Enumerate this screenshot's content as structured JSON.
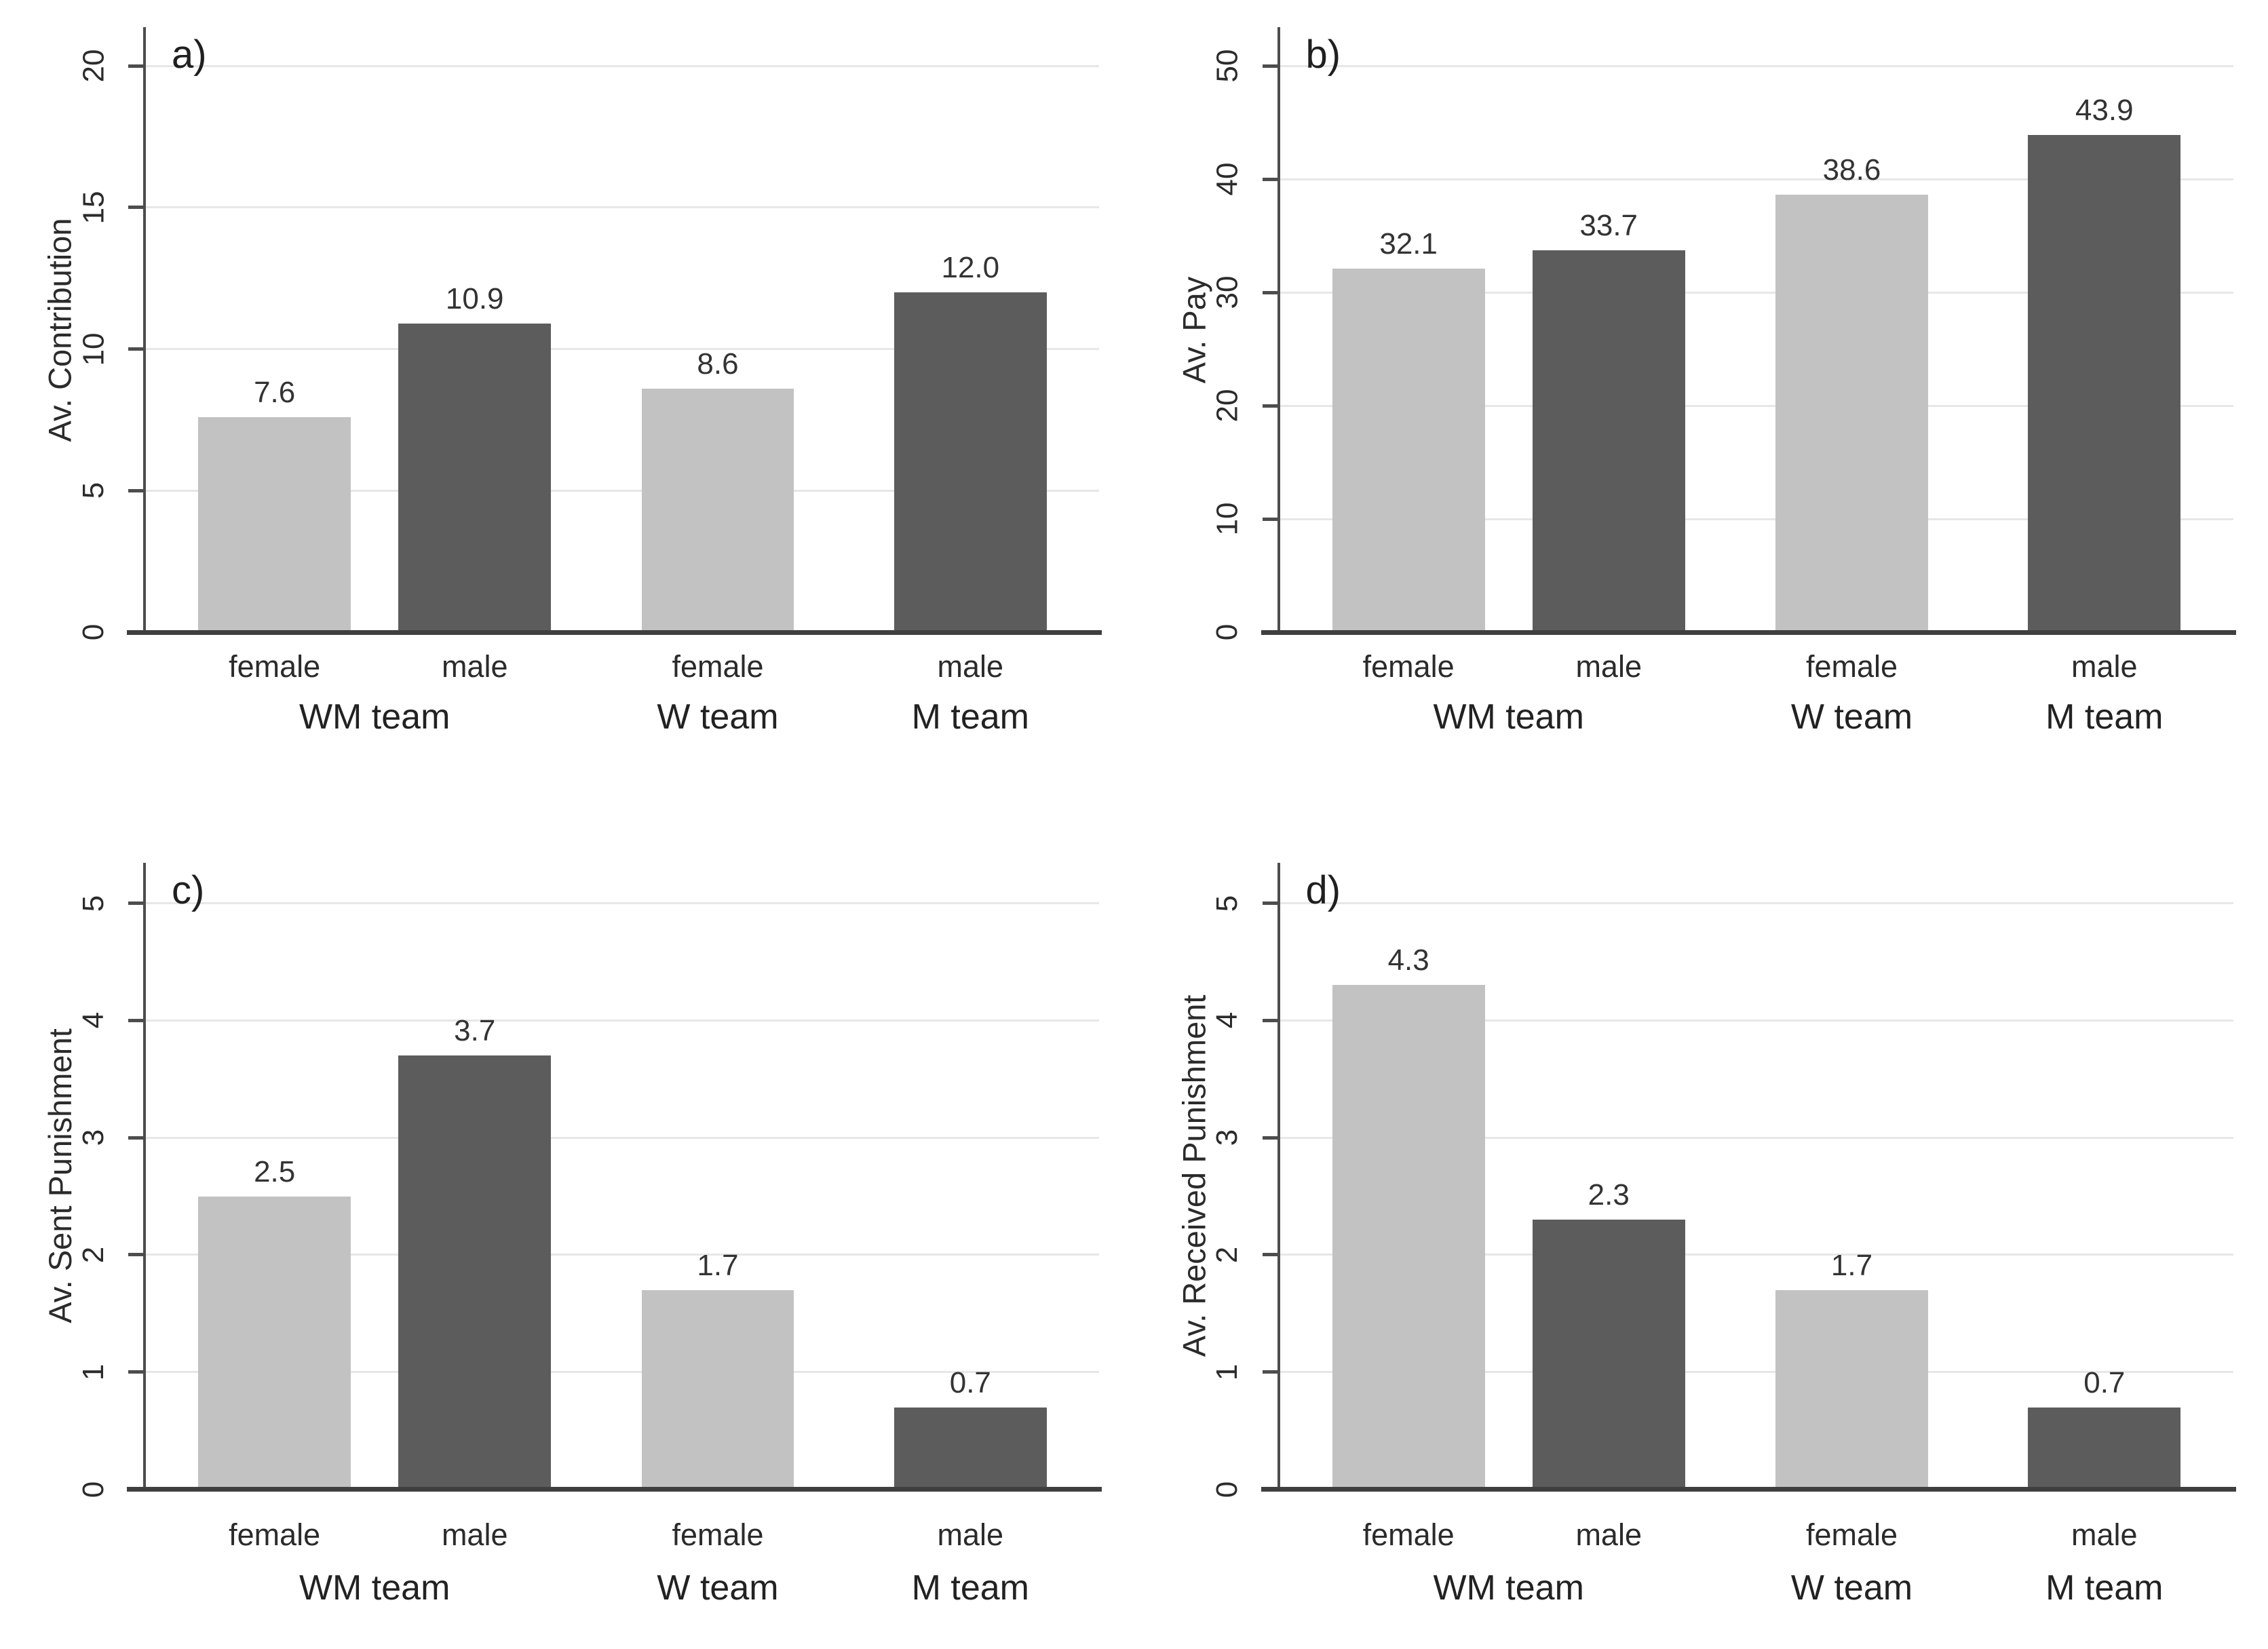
{
  "figure": {
    "background": "#ffffff",
    "description": "2x2 grid of grouped bar charts comparing female and male members of WM, W and M teams"
  },
  "style": {
    "bar_light": "#c2c2c2",
    "bar_dark": "#5c5c5c",
    "gridline": "#e7e7e7",
    "y_axis": "#4d4d4d",
    "x_axis": "#3f3f3f",
    "text": "#2b2b2b"
  },
  "chart_data": [
    {
      "type": "bar",
      "id": "a",
      "panel_label": "a)",
      "title": "",
      "xlabel": "",
      "ylabel": "Av. Contribution",
      "ylim": [
        0,
        20
      ],
      "yticks": [
        0,
        5,
        10,
        15,
        20
      ],
      "grid": true,
      "legend": "none",
      "categories": [
        "female",
        "male",
        "female",
        "male"
      ],
      "bar_styles": [
        "light",
        "dark",
        "light",
        "dark"
      ],
      "values": [
        7.6,
        10.9,
        8.6,
        12.0
      ],
      "value_labels": [
        "7.6",
        "10.9",
        "8.6",
        "12.0"
      ],
      "groups": [
        {
          "label": "WM team",
          "bars": [
            0,
            1
          ]
        },
        {
          "label": "W team",
          "bars": [
            2
          ]
        },
        {
          "label": "M team",
          "bars": [
            3
          ]
        }
      ]
    },
    {
      "type": "bar",
      "id": "b",
      "panel_label": "b)",
      "title": "",
      "xlabel": "",
      "ylabel": "Av. Pay",
      "ylim": [
        0,
        50
      ],
      "yticks": [
        0,
        10,
        20,
        30,
        40,
        50
      ],
      "grid": true,
      "legend": "none",
      "categories": [
        "female",
        "male",
        "female",
        "male"
      ],
      "bar_styles": [
        "light",
        "dark",
        "light",
        "dark"
      ],
      "values": [
        32.1,
        33.7,
        38.6,
        43.9
      ],
      "value_labels": [
        "32.1",
        "33.7",
        "38.6",
        "43.9"
      ],
      "groups": [
        {
          "label": "WM team",
          "bars": [
            0,
            1
          ]
        },
        {
          "label": "W team",
          "bars": [
            2
          ]
        },
        {
          "label": "M team",
          "bars": [
            3
          ]
        }
      ]
    },
    {
      "type": "bar",
      "id": "c",
      "panel_label": "c)",
      "title": "",
      "xlabel": "",
      "ylabel": "Av. Sent Punishment",
      "ylim": [
        0,
        5
      ],
      "yticks": [
        0,
        1,
        2,
        3,
        4,
        5
      ],
      "grid": true,
      "legend": "none",
      "categories": [
        "female",
        "male",
        "female",
        "male"
      ],
      "bar_styles": [
        "light",
        "dark",
        "light",
        "dark"
      ],
      "values": [
        2.5,
        3.7,
        1.7,
        0.7
      ],
      "value_labels": [
        "2.5",
        "3.7",
        "1.7",
        "0.7"
      ],
      "groups": [
        {
          "label": "WM team",
          "bars": [
            0,
            1
          ]
        },
        {
          "label": "W team",
          "bars": [
            2
          ]
        },
        {
          "label": "M team",
          "bars": [
            3
          ]
        }
      ]
    },
    {
      "type": "bar",
      "id": "d",
      "panel_label": "d)",
      "title": "",
      "xlabel": "",
      "ylabel": "Av. Received Punishment",
      "ylim": [
        0,
        5
      ],
      "yticks": [
        0,
        1,
        2,
        3,
        4,
        5
      ],
      "grid": true,
      "legend": "none",
      "categories": [
        "female",
        "male",
        "female",
        "male"
      ],
      "bar_styles": [
        "light",
        "dark",
        "light",
        "dark"
      ],
      "values": [
        4.3,
        2.3,
        1.7,
        0.7
      ],
      "value_labels": [
        "4.3",
        "2.3",
        "1.7",
        "0.7"
      ],
      "groups": [
        {
          "label": "WM team",
          "bars": [
            0,
            1
          ]
        },
        {
          "label": "W team",
          "bars": [
            2
          ]
        },
        {
          "label": "M team",
          "bars": [
            3
          ]
        }
      ]
    }
  ]
}
